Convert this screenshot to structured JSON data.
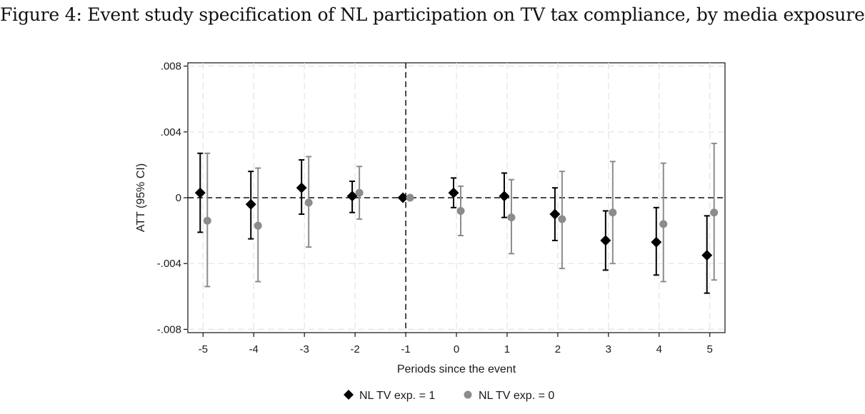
{
  "figure_caption": "Figure 4: Event study specification of NL participation on TV tax compliance, by media exposure",
  "chart_data": {
    "type": "scatter",
    "title": "Figure 4: Event study specification of NL participation on TV tax compliance, by media exposure",
    "xlabel": "Periods since the event",
    "ylabel": "ATT (95% CI)",
    "xlim": [
      -5.3,
      5.3
    ],
    "ylim": [
      -0.0082,
      0.0082
    ],
    "x_ticks": [
      -5,
      -4,
      -3,
      -2,
      -1,
      0,
      1,
      2,
      3,
      4,
      5
    ],
    "x_tick_labels": [
      "-5",
      "-4",
      "-3",
      "-2",
      "-1",
      "0",
      "1",
      "2",
      "3",
      "4",
      "5"
    ],
    "y_ticks": [
      0.008,
      0.004,
      0,
      -0.004,
      -0.008
    ],
    "y_tick_labels": [
      ".008",
      ".004",
      "0",
      "-.004",
      "-.008"
    ],
    "event_period": -1,
    "reference_line_y": 0,
    "grid": true,
    "legend_position": "bottom",
    "series": [
      {
        "name": "NL TV exp. = 1",
        "marker": "diamond",
        "color": "#000000",
        "x": [
          -5,
          -4,
          -3,
          -2,
          -1,
          0,
          1,
          2,
          3,
          4,
          5
        ],
        "values": [
          0.0003,
          -0.0004,
          0.0006,
          0.0001,
          0.0,
          0.0003,
          0.0001,
          -0.001,
          -0.0026,
          -0.0027,
          -0.0035
        ],
        "ci_low": [
          -0.0021,
          -0.0025,
          -0.001,
          -0.0009,
          0.0,
          -0.0006,
          -0.0012,
          -0.0026,
          -0.0044,
          -0.0047,
          -0.0058
        ],
        "ci_high": [
          0.0027,
          0.0016,
          0.0023,
          0.001,
          0.0,
          0.0012,
          0.0015,
          0.0006,
          -0.0008,
          -0.0006,
          -0.0011
        ]
      },
      {
        "name": "NL TV exp. = 0",
        "marker": "circle",
        "color": "#8c8c8c",
        "x": [
          -5,
          -4,
          -3,
          -2,
          -1,
          0,
          1,
          2,
          3,
          4,
          5
        ],
        "values": [
          -0.0014,
          -0.0017,
          -0.0003,
          0.0003,
          0.0,
          -0.0008,
          -0.0012,
          -0.0013,
          -0.0009,
          -0.0016,
          -0.0009
        ],
        "ci_low": [
          -0.0054,
          -0.0051,
          -0.003,
          -0.0013,
          0.0,
          -0.0023,
          -0.0034,
          -0.0043,
          -0.004,
          -0.0051,
          -0.005
        ],
        "ci_high": [
          0.0027,
          0.0018,
          0.0025,
          0.0019,
          0.0,
          0.0007,
          0.0011,
          0.0016,
          0.0022,
          0.0021,
          0.0033
        ]
      }
    ]
  }
}
